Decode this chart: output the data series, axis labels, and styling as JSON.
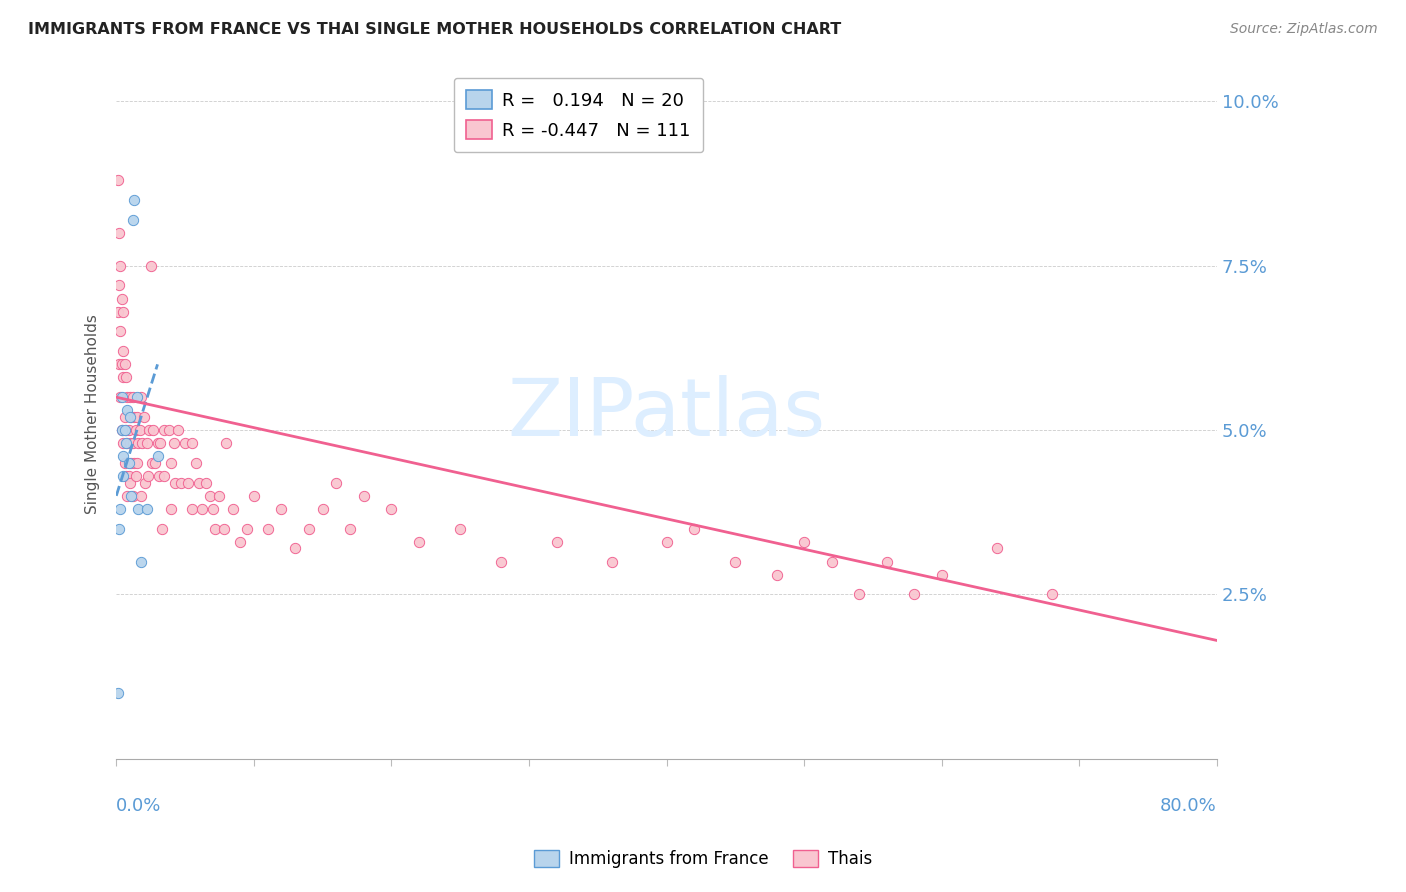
{
  "title": "IMMIGRANTS FROM FRANCE VS THAI SINGLE MOTHER HOUSEHOLDS CORRELATION CHART",
  "source": "Source: ZipAtlas.com",
  "ylabel": "Single Mother Households",
  "yticks": [
    0.0,
    0.025,
    0.05,
    0.075,
    0.1
  ],
  "ytick_labels": [
    "",
    "2.5%",
    "5.0%",
    "7.5%",
    "10.0%"
  ],
  "xlim": [
    0.0,
    0.8
  ],
  "ylim": [
    0.0,
    0.105
  ],
  "france_R": 0.194,
  "france_N": 20,
  "thai_R": -0.447,
  "thai_N": 111,
  "france_color": "#b8d4ec",
  "france_edge_color": "#5b9bd5",
  "france_line_color": "#5b9bd5",
  "thai_color": "#f9c6d0",
  "thai_edge_color": "#f06090",
  "thai_line_color": "#f06090",
  "watermark_text": "ZIPatlas",
  "watermark_color": "#ddeeff",
  "france_scatter_x": [
    0.001,
    0.002,
    0.003,
    0.004,
    0.004,
    0.005,
    0.005,
    0.006,
    0.007,
    0.008,
    0.009,
    0.01,
    0.011,
    0.012,
    0.013,
    0.015,
    0.016,
    0.018,
    0.022,
    0.03
  ],
  "france_scatter_y": [
    0.01,
    0.035,
    0.038,
    0.05,
    0.055,
    0.046,
    0.043,
    0.05,
    0.048,
    0.053,
    0.045,
    0.052,
    0.04,
    0.082,
    0.085,
    0.055,
    0.038,
    0.03,
    0.038,
    0.046
  ],
  "thai_scatter_x": [
    0.001,
    0.001,
    0.002,
    0.002,
    0.002,
    0.003,
    0.003,
    0.003,
    0.004,
    0.004,
    0.004,
    0.005,
    0.005,
    0.005,
    0.005,
    0.006,
    0.006,
    0.006,
    0.007,
    0.007,
    0.007,
    0.008,
    0.008,
    0.008,
    0.009,
    0.009,
    0.01,
    0.01,
    0.01,
    0.011,
    0.011,
    0.012,
    0.012,
    0.012,
    0.013,
    0.013,
    0.014,
    0.014,
    0.015,
    0.015,
    0.016,
    0.017,
    0.018,
    0.018,
    0.019,
    0.02,
    0.021,
    0.022,
    0.023,
    0.024,
    0.025,
    0.026,
    0.027,
    0.028,
    0.03,
    0.031,
    0.032,
    0.033,
    0.035,
    0.035,
    0.038,
    0.04,
    0.04,
    0.042,
    0.043,
    0.045,
    0.047,
    0.05,
    0.052,
    0.055,
    0.055,
    0.058,
    0.06,
    0.062,
    0.065,
    0.068,
    0.07,
    0.072,
    0.075,
    0.078,
    0.08,
    0.085,
    0.09,
    0.095,
    0.1,
    0.11,
    0.12,
    0.13,
    0.14,
    0.15,
    0.16,
    0.17,
    0.18,
    0.2,
    0.22,
    0.25,
    0.28,
    0.32,
    0.36,
    0.4,
    0.42,
    0.45,
    0.48,
    0.5,
    0.52,
    0.54,
    0.56,
    0.58,
    0.6,
    0.64,
    0.68
  ],
  "thai_scatter_y": [
    0.088,
    0.068,
    0.08,
    0.072,
    0.06,
    0.075,
    0.065,
    0.055,
    0.07,
    0.06,
    0.05,
    0.068,
    0.058,
    0.048,
    0.062,
    0.06,
    0.052,
    0.045,
    0.058,
    0.05,
    0.043,
    0.055,
    0.048,
    0.04,
    0.05,
    0.043,
    0.055,
    0.048,
    0.042,
    0.052,
    0.045,
    0.055,
    0.048,
    0.04,
    0.052,
    0.045,
    0.05,
    0.043,
    0.052,
    0.045,
    0.048,
    0.05,
    0.055,
    0.04,
    0.048,
    0.052,
    0.042,
    0.048,
    0.043,
    0.05,
    0.075,
    0.045,
    0.05,
    0.045,
    0.048,
    0.043,
    0.048,
    0.035,
    0.05,
    0.043,
    0.05,
    0.045,
    0.038,
    0.048,
    0.042,
    0.05,
    0.042,
    0.048,
    0.042,
    0.048,
    0.038,
    0.045,
    0.042,
    0.038,
    0.042,
    0.04,
    0.038,
    0.035,
    0.04,
    0.035,
    0.048,
    0.038,
    0.033,
    0.035,
    0.04,
    0.035,
    0.038,
    0.032,
    0.035,
    0.038,
    0.042,
    0.035,
    0.04,
    0.038,
    0.033,
    0.035,
    0.03,
    0.033,
    0.03,
    0.033,
    0.035,
    0.03,
    0.028,
    0.033,
    0.03,
    0.025,
    0.03,
    0.025,
    0.028,
    0.032,
    0.025
  ],
  "france_trend_x": [
    0.0,
    0.03
  ],
  "france_trend_y_start": 0.04,
  "france_trend_y_end": 0.06,
  "thai_trend_x": [
    0.0,
    0.8
  ],
  "thai_trend_y_start": 0.055,
  "thai_trend_y_end": 0.018
}
